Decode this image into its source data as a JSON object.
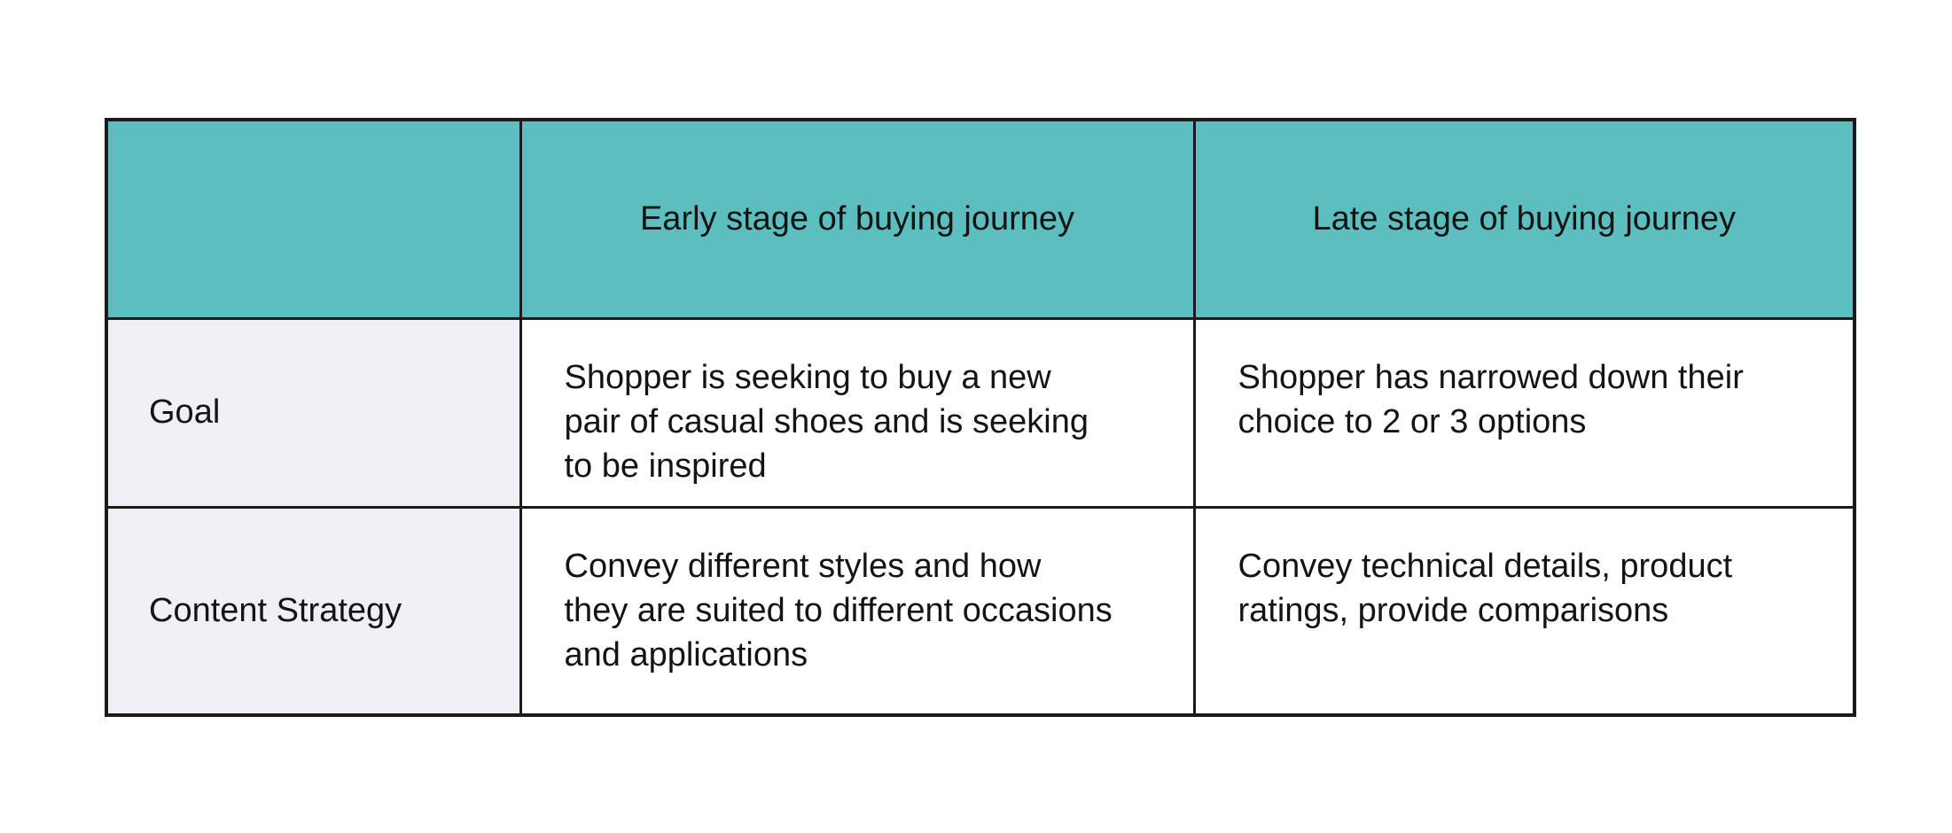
{
  "table": {
    "header": {
      "corner": "",
      "early_label": "Early stage of buying journey",
      "late_label": "Late stage of buying journey"
    },
    "rows": [
      {
        "label": "Goal",
        "early": "Shopper is seeking to buy a new\npair of casual shoes and is seeking\nto be inspired",
        "late": "Shopper has narrowed down their\nchoice to 2 or 3 options"
      },
      {
        "label": "Content Strategy",
        "early": "Convey different styles and how\nthey are suited to different occasions\nand applications",
        "late": "Convey technical details, product\nratings, provide comparisons"
      }
    ]
  },
  "colors": {
    "header_bg": "#5dbebf",
    "label_column_bg": "#eef0f6",
    "body_bg": "#ffffff",
    "border": "#1b1b1b",
    "text": "#141414",
    "page_bg": "#ffffff"
  }
}
